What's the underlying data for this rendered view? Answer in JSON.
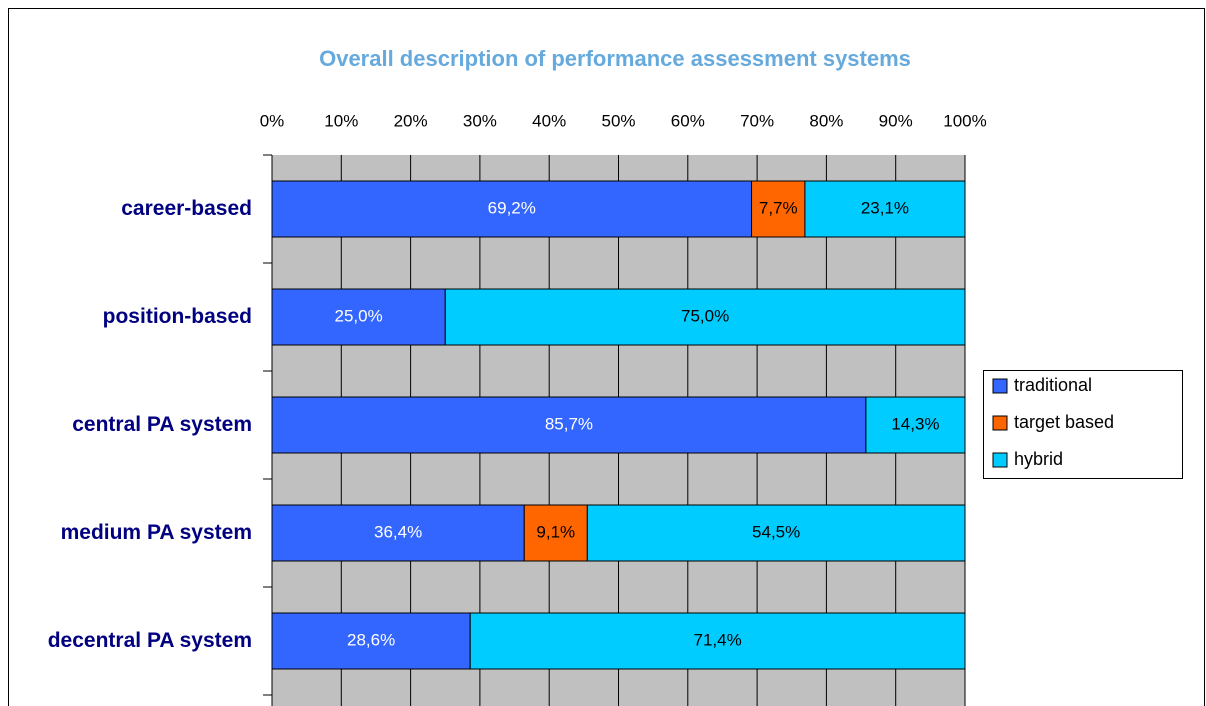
{
  "chart_data": {
    "type": "stacked-bar-horizontal",
    "title": "Overall description of performance assessment systems",
    "categories": [
      "career-based",
      "position-based",
      "central PA system",
      "medium PA system",
      "decentral PA system"
    ],
    "series": [
      {
        "name": "traditional",
        "color": "#3366ff",
        "values": [
          69.2,
          25.0,
          85.7,
          36.4,
          28.6
        ],
        "value_labels": [
          "69,2%",
          "25,0%",
          "85,7%",
          "36,4%",
          "28,6%"
        ]
      },
      {
        "name": "target based",
        "color": "#ff6600",
        "values": [
          7.7,
          0,
          0,
          9.1,
          0
        ],
        "value_labels": [
          "7,7%",
          null,
          null,
          "9,1%",
          null
        ]
      },
      {
        "name": "hybrid",
        "color": "#00ccff",
        "values": [
          23.1,
          75.0,
          14.3,
          54.5,
          71.4
        ],
        "value_labels": [
          "23,1%",
          "75,0%",
          "14,3%",
          "54,5%",
          "71,4%"
        ]
      }
    ],
    "xlim": [
      0,
      100
    ],
    "xticks": [
      {
        "value": 0,
        "label": "0%"
      },
      {
        "value": 10,
        "label": "10%"
      },
      {
        "value": 20,
        "label": "20%"
      },
      {
        "value": 30,
        "label": "30%"
      },
      {
        "value": 40,
        "label": "40%"
      },
      {
        "value": 50,
        "label": "50%"
      },
      {
        "value": 60,
        "label": "60%"
      },
      {
        "value": 70,
        "label": "70%"
      },
      {
        "value": 80,
        "label": "80%"
      },
      {
        "value": 90,
        "label": "90%"
      },
      {
        "value": 100,
        "label": "100%"
      }
    ],
    "grid": true,
    "legend": "right"
  }
}
